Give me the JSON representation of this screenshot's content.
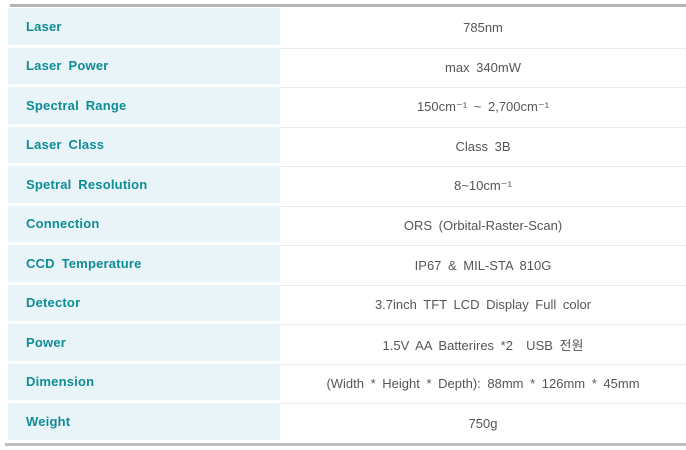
{
  "page": {
    "background": "#ffffff",
    "label_bg_color": "#e9f4f8",
    "label_text_color": "#0e8d96",
    "value_text_color": "#565656",
    "rule_color": "#b4b4b4",
    "separator_color": "#ececec"
  },
  "table": {
    "rows": [
      {
        "label": "Laser",
        "value": "785nm"
      },
      {
        "label": "Laser Power",
        "value": "max 340mW"
      },
      {
        "label": "Spectral Range",
        "value": "150cm⁻¹ ~ 2,700cm⁻¹"
      },
      {
        "label": "Laser Class",
        "value": "Class 3B"
      },
      {
        "label": "Spetral Resolution",
        "value": "8~10cm⁻¹"
      },
      {
        "label": "Connection",
        "value": "ORS (Orbital-Raster-Scan)"
      },
      {
        "label": "CCD Temperature",
        "value": "IP67 & MIL-STA 810G"
      },
      {
        "label": "Detector",
        "value": "3.7inch TFT LCD Display Full color"
      },
      {
        "label": "Power",
        "value": "1.5V AA Batterires *2  USB 전원"
      },
      {
        "label": "Dimension",
        "value": "(Width * Height * Depth): 88mm * 126mm * 45mm"
      },
      {
        "label": "Weight",
        "value": "750g"
      }
    ]
  }
}
